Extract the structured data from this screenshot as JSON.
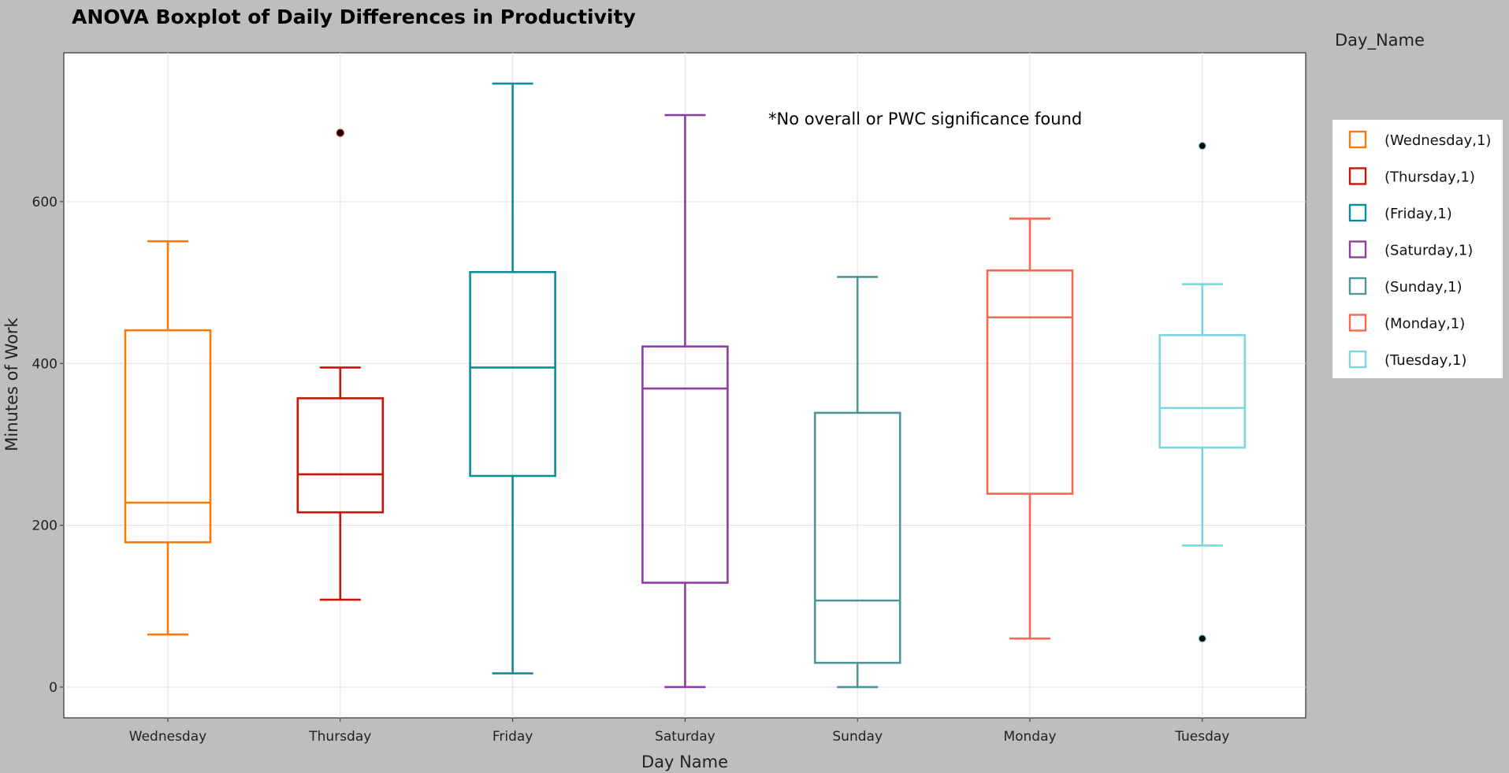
{
  "chart_data": {
    "type": "boxplot",
    "title": "ANOVA Boxplot of Daily Differences in Productivity",
    "xlabel": "Day Name",
    "ylabel": "Minutes of Work",
    "ylim": [
      -38,
      784
    ],
    "yticks": [
      0,
      200,
      400,
      600
    ],
    "grid": true,
    "annotation": "*No overall or PWC significance found",
    "legend": {
      "title": "Day_Name",
      "placement": "right"
    },
    "categories": [
      "Wednesday",
      "Thursday",
      "Friday",
      "Saturday",
      "Sunday",
      "Monday",
      "Tuesday"
    ],
    "series": [
      {
        "name": "Wednesday",
        "legend": "(Wednesday,1)",
        "color": "#F97A0A",
        "lower": 65,
        "q1": 179,
        "median": 228,
        "q3": 441,
        "upper": 551,
        "outliers": []
      },
      {
        "name": "Thursday",
        "legend": "(Thursday,1)",
        "color": "#C4170A",
        "lower": 108,
        "q1": 216,
        "median": 263,
        "q3": 357,
        "upper": 395,
        "outliers": [
          685
        ]
      },
      {
        "name": "Friday",
        "legend": "(Friday,1)",
        "color": "#0E8C9C",
        "lower": 17,
        "q1": 261,
        "median": 395,
        "q3": 513,
        "upper": 746,
        "outliers": []
      },
      {
        "name": "Saturday",
        "legend": "(Saturday,1)",
        "color": "#8B3F9E",
        "lower": 0,
        "q1": 129,
        "median": 369,
        "q3": 421,
        "upper": 707,
        "outliers": []
      },
      {
        "name": "Sunday",
        "legend": "(Sunday,1)",
        "color": "#4F9597",
        "lower": 0,
        "q1": 30,
        "median": 107,
        "q3": 339,
        "upper": 507,
        "outliers": []
      },
      {
        "name": "Monday",
        "legend": "(Monday,1)",
        "color": "#F4684F",
        "lower": 60,
        "q1": 239,
        "median": 457,
        "q3": 515,
        "upper": 579,
        "outliers": []
      },
      {
        "name": "Tuesday",
        "legend": "(Tuesday,1)",
        "color": "#7DD5DE",
        "lower": 175,
        "q1": 296,
        "median": 345,
        "q3": 435,
        "upper": 498,
        "outliers": [
          669,
          60
        ]
      }
    ]
  }
}
